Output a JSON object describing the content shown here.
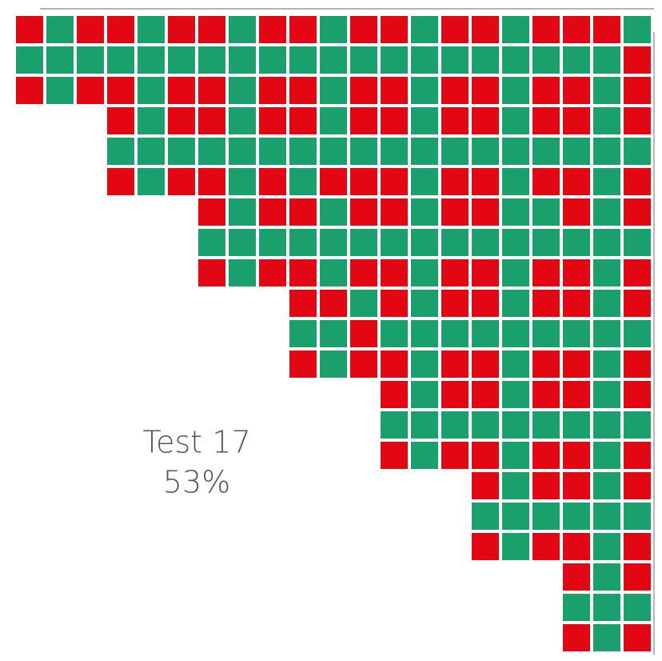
{
  "colors": {
    "R": "#e30613",
    "G": "#1aa06d"
  },
  "label": {
    "title": "Test 17",
    "value": "53%"
  },
  "grid": [
    [
      "R",
      "G",
      "R",
      "R",
      "G",
      "R",
      "R",
      "G",
      "R",
      "R",
      "G",
      "R",
      "R",
      "G",
      "R",
      "R",
      "G",
      "R",
      "R",
      "R",
      "G"
    ],
    [
      "G",
      "G",
      "G",
      "G",
      "G",
      "G",
      "G",
      "G",
      "G",
      "G",
      "G",
      "G",
      "G",
      "G",
      "G",
      "G",
      "G",
      "G",
      "G",
      "G",
      "R"
    ],
    [
      "R",
      "G",
      "R",
      "R",
      "G",
      "R",
      "R",
      "G",
      "R",
      "R",
      "G",
      "R",
      "R",
      "G",
      "R",
      "R",
      "G",
      "R",
      "R",
      "G",
      "R"
    ],
    [
      null,
      null,
      null,
      "R",
      "G",
      "R",
      "R",
      "G",
      "R",
      "R",
      "G",
      "R",
      "R",
      "G",
      "R",
      "R",
      "G",
      "R",
      "R",
      "G",
      "R"
    ],
    [
      null,
      null,
      null,
      "G",
      "G",
      "G",
      "G",
      "G",
      "G",
      "G",
      "G",
      "G",
      "G",
      "G",
      "G",
      "G",
      "G",
      "G",
      "G",
      "G",
      "G"
    ],
    [
      null,
      null,
      null,
      "R",
      "G",
      "R",
      "R",
      "G",
      "R",
      "G",
      "R",
      "R",
      "R",
      "G",
      "R",
      "R",
      "G",
      "R",
      "R",
      "G",
      "R"
    ],
    [
      null,
      null,
      null,
      null,
      null,
      null,
      "R",
      "G",
      "R",
      "R",
      "G",
      "R",
      "R",
      "G",
      "R",
      "R",
      "G",
      "G",
      "R",
      "G",
      "R"
    ],
    [
      null,
      null,
      null,
      null,
      null,
      null,
      "G",
      "G",
      "G",
      "G",
      "G",
      "G",
      "G",
      "G",
      "G",
      "G",
      "G",
      "G",
      "G",
      "G",
      "G"
    ],
    [
      null,
      null,
      null,
      null,
      null,
      null,
      "R",
      "G",
      "R",
      "R",
      "G",
      "R",
      "R",
      "G",
      "R",
      "R",
      "G",
      "R",
      "R",
      "G",
      "R"
    ],
    [
      null,
      null,
      null,
      null,
      null,
      null,
      null,
      null,
      null,
      "R",
      "R",
      "G",
      "R",
      "G",
      "R",
      "R",
      "G",
      "R",
      "R",
      "G",
      "R"
    ],
    [
      null,
      null,
      null,
      null,
      null,
      null,
      null,
      null,
      null,
      "G",
      "G",
      "R",
      "G",
      "G",
      "G",
      "G",
      "G",
      "G",
      "G",
      "G",
      "G"
    ],
    [
      null,
      null,
      null,
      null,
      null,
      null,
      null,
      null,
      null,
      "R",
      "G",
      "R",
      "R",
      "G",
      "R",
      "R",
      "G",
      "R",
      "R",
      "G",
      "R"
    ],
    [
      null,
      null,
      null,
      null,
      null,
      null,
      null,
      null,
      null,
      null,
      null,
      null,
      "R",
      "G",
      "R",
      "R",
      "G",
      "R",
      "R",
      "G",
      "R"
    ],
    [
      null,
      null,
      null,
      null,
      null,
      null,
      null,
      null,
      null,
      null,
      null,
      null,
      "G",
      "G",
      "G",
      "G",
      "G",
      "G",
      "G",
      "G",
      "G"
    ],
    [
      null,
      null,
      null,
      null,
      null,
      null,
      null,
      null,
      null,
      null,
      null,
      null,
      "R",
      "G",
      "R",
      "R",
      "G",
      "R",
      "R",
      "G",
      "R"
    ],
    [
      null,
      null,
      null,
      null,
      null,
      null,
      null,
      null,
      null,
      null,
      null,
      null,
      null,
      null,
      null,
      "R",
      "G",
      "R",
      "R",
      "G",
      "R"
    ],
    [
      null,
      null,
      null,
      null,
      null,
      null,
      null,
      null,
      null,
      null,
      null,
      null,
      null,
      null,
      null,
      "G",
      "G",
      "G",
      "G",
      "G",
      "G"
    ],
    [
      null,
      null,
      null,
      null,
      null,
      null,
      null,
      null,
      null,
      null,
      null,
      null,
      null,
      null,
      null,
      "R",
      "G",
      "R",
      "R",
      "G",
      "R"
    ],
    [
      null,
      null,
      null,
      null,
      null,
      null,
      null,
      null,
      null,
      null,
      null,
      null,
      null,
      null,
      null,
      null,
      null,
      null,
      "R",
      "G",
      "R"
    ],
    [
      null,
      null,
      null,
      null,
      null,
      null,
      null,
      null,
      null,
      null,
      null,
      null,
      null,
      null,
      null,
      null,
      null,
      null,
      "G",
      "G",
      "G"
    ],
    [
      null,
      null,
      null,
      null,
      null,
      null,
      null,
      null,
      null,
      null,
      null,
      null,
      null,
      null,
      null,
      null,
      null,
      null,
      "R",
      "G",
      "R"
    ]
  ]
}
